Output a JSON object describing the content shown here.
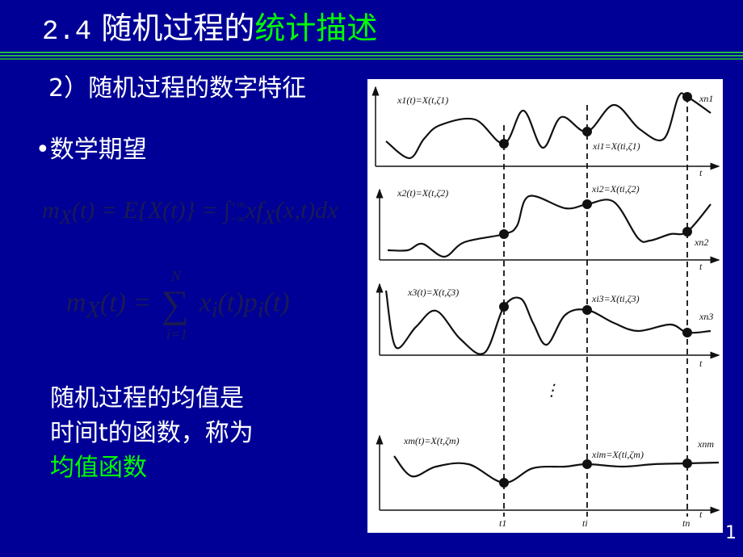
{
  "title": {
    "number": "2.4",
    "white_part": "随机过程的",
    "green_part": "统计描述"
  },
  "subtitle": "2）随机过程的数字特征",
  "bullet": {
    "symbol": "•",
    "text": "数学期望"
  },
  "formulas": {
    "integral": {
      "lhs": "m",
      "lhs_sub": "X",
      "middle": "(t) = E{X(t)} = ∫",
      "upper": "+∞",
      "lower": "−∞",
      "rhs": "xf",
      "rhs_sub": "X",
      "rhs_end": "(x,t)dx"
    },
    "sum": {
      "lhs": "m",
      "lhs_sub": "X",
      "lhs_end": "(t) =",
      "sigma": "∑",
      "upper": "N",
      "lower": "i=1",
      "rhs": "x",
      "rhs_sub": "i",
      "rhs_mid": "(t)p",
      "rhs_sub2": "i",
      "rhs_end": "(t)"
    }
  },
  "body": {
    "line1": "随机过程的均值是",
    "line2": "时间t的函数，称为",
    "line3": "均值函数"
  },
  "figure": {
    "curve_labels": [
      "x1(t)=X(t,ζ1)",
      "x2(t)=X(t,ζ2)",
      "x3(t)=X(t,ζ3)",
      "xm(t)=X(t,ζm)"
    ],
    "point_labels": [
      "xi1=X(ti,ζ1)",
      "xi2=X(ti,ζ2)",
      "xi3=X(ti,ζ3)",
      "xim=X(ti,ζm)"
    ],
    "end_labels": [
      "xn1",
      "xn2",
      "xn3",
      "xnm"
    ],
    "axis_label": "t",
    "time_labels": [
      "t1",
      "ti",
      "tn"
    ],
    "ellipsis": "⋮"
  },
  "colors": {
    "background": "#000096",
    "accent": "#00ff00",
    "text": "#ffffff"
  },
  "page_number": "1"
}
